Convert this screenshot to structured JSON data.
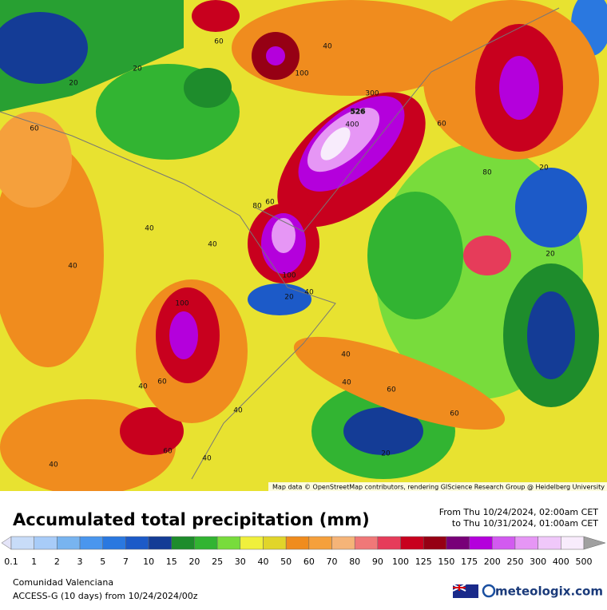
{
  "map": {
    "contour_labels": [
      60,
      40,
      20,
      20,
      100,
      300,
      526,
      400,
      60,
      60,
      80,
      20,
      60,
      80,
      40,
      40,
      40,
      20,
      100,
      20,
      40,
      100,
      40,
      40,
      60,
      40,
      60,
      40,
      60,
      60,
      40,
      20,
      40
    ],
    "attribution": "Map data © OpenStreetMap contributors, rendering GIScience Research Group @ Heidelberg University"
  },
  "legend": {
    "title": "Accumulated total precipitation (mm)",
    "period_from": "From Thu 10/24/2024, 02:00am CET",
    "period_to": "to Thu 10/31/2024, 01:00am CET",
    "ticks": [
      0.1,
      1,
      2,
      3,
      5,
      7,
      10,
      15,
      20,
      25,
      30,
      40,
      50,
      60,
      70,
      80,
      90,
      100,
      125,
      150,
      175,
      200,
      250,
      300,
      400,
      500
    ],
    "colors": [
      "#e4e4f8",
      "#c8dcf8",
      "#a8ccf8",
      "#78b4f0",
      "#4a96ee",
      "#2a78e0",
      "#1c5ac8",
      "#143c96",
      "#1e8c2c",
      "#32b432",
      "#78dc3c",
      "#f0f03c",
      "#e1d52a",
      "#f08c1e",
      "#f5a03c",
      "#f5b478",
      "#f07878",
      "#e63c5a",
      "#c8001e",
      "#960014",
      "#780078",
      "#b400dc",
      "#d25af0",
      "#e696f5",
      "#f0c8fa",
      "#f8ecfc",
      "#d2d2d2",
      "#a0a0a0"
    ]
  },
  "footer": {
    "region": "Comunidad Valenciana",
    "model": "ACCESS-G (10 days) from 10/24/2024/00z",
    "brand": "meteologix.com"
  }
}
